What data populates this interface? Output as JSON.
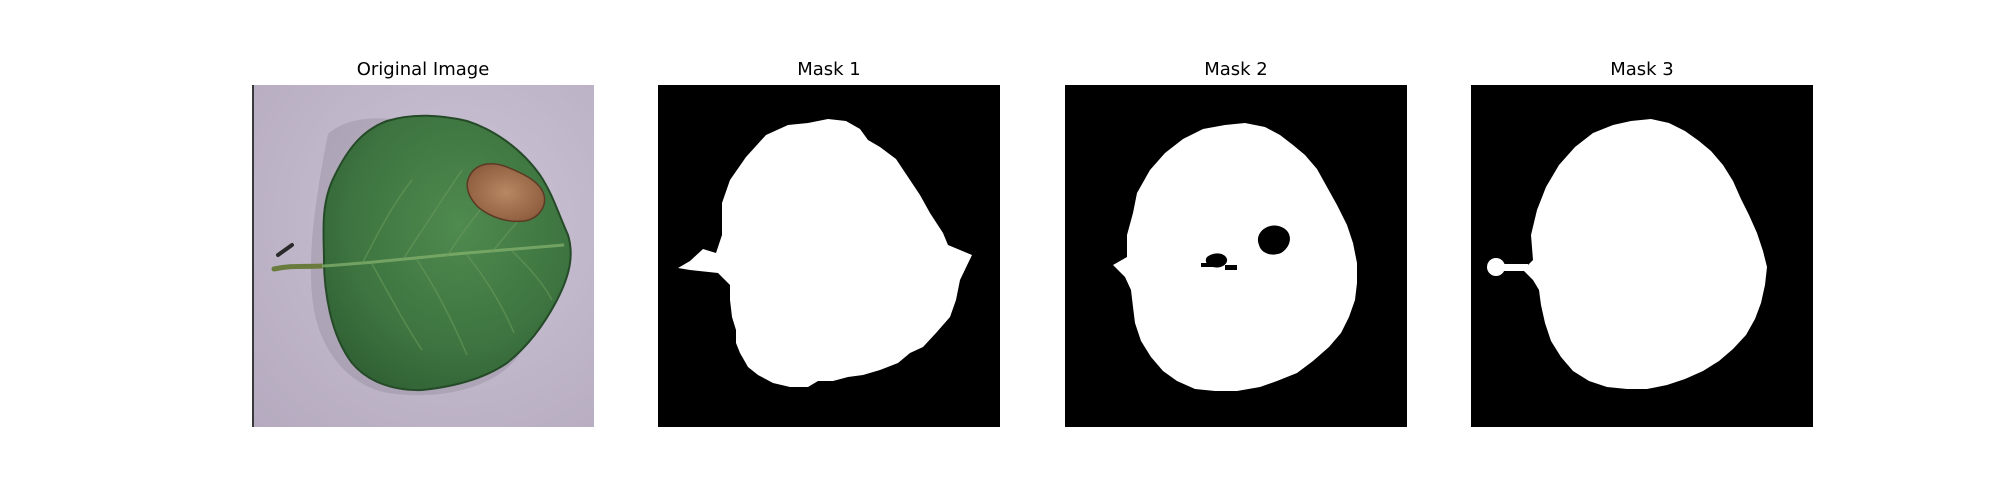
{
  "figure": {
    "panels": [
      {
        "title": "Original Image",
        "kind": "photo"
      },
      {
        "title": "Mask 1",
        "kind": "mask"
      },
      {
        "title": "Mask 2",
        "kind": "mask"
      },
      {
        "title": "Mask 3",
        "kind": "mask"
      }
    ]
  },
  "colors": {
    "background": "#c2b8ca",
    "leaf_dark": "#2c5a30",
    "leaf_mid": "#3d7440",
    "leaf_light": "#4f8a4e",
    "lesion": "#a57452",
    "mask_fg": "#ffffff",
    "mask_bg": "#000000"
  }
}
